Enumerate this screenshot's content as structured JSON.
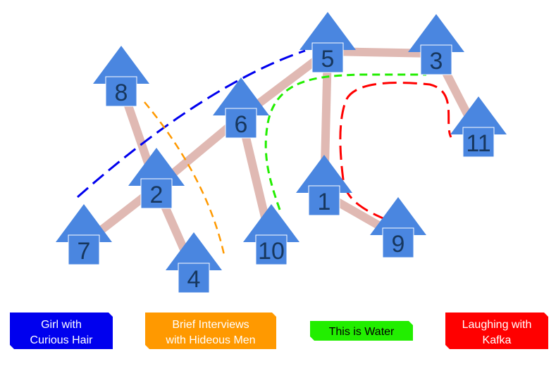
{
  "colors": {
    "node_fill": "#4a86e0",
    "node_text": "#17375e",
    "edge": "#e0b9b3",
    "blue": "#0000ee",
    "orange": "#ff9900",
    "green": "#22ee00",
    "red": "#ff0000"
  },
  "nodes": [
    {
      "id": "1",
      "label": "1"
    },
    {
      "id": "2",
      "label": "2"
    },
    {
      "id": "3",
      "label": "3"
    },
    {
      "id": "4",
      "label": "4"
    },
    {
      "id": "5",
      "label": "5"
    },
    {
      "id": "6",
      "label": "6"
    },
    {
      "id": "7",
      "label": "7"
    },
    {
      "id": "8",
      "label": "8"
    },
    {
      "id": "9",
      "label": "9"
    },
    {
      "id": "10",
      "label": "10"
    },
    {
      "id": "11",
      "label": "11"
    }
  ],
  "edges": [
    [
      "5",
      "3"
    ],
    [
      "5",
      "6"
    ],
    [
      "5",
      "1"
    ],
    [
      "3",
      "11"
    ],
    [
      "6",
      "2"
    ],
    [
      "6",
      "10"
    ],
    [
      "8",
      "2"
    ],
    [
      "2",
      "7"
    ],
    [
      "2",
      "4"
    ],
    [
      "1",
      "9"
    ]
  ],
  "legend": [
    {
      "id": "girl",
      "line1": "Girl with",
      "line2": "Curious Hair",
      "color": "#0000ee"
    },
    {
      "id": "brief",
      "line1": "Brief Interviews",
      "line2": "with Hideous Men",
      "color": "#ff9900"
    },
    {
      "id": "water",
      "line1": "This is Water",
      "line2": "",
      "color": "#22ee00"
    },
    {
      "id": "kafka",
      "line1": "Laughing with",
      "line2": "Kafka",
      "color": "#ff0000"
    }
  ]
}
